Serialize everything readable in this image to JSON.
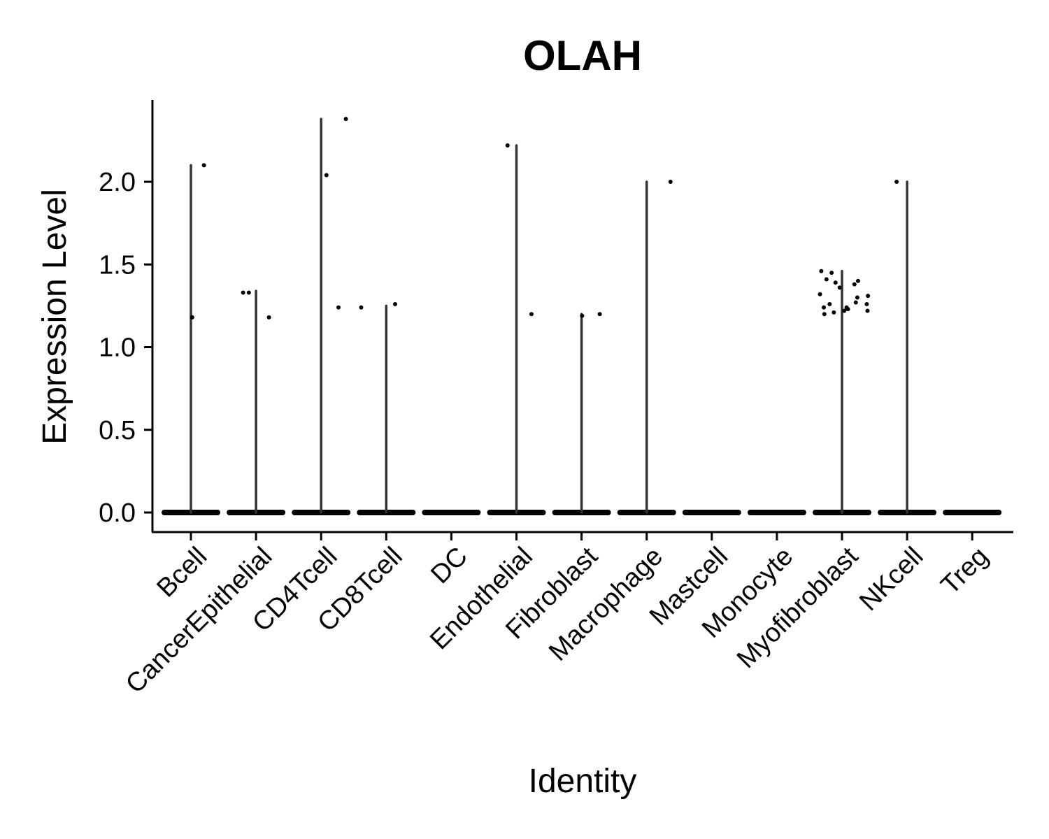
{
  "chart_data": {
    "type": "violin",
    "title": "OLAH",
    "xlabel": "Identity",
    "ylabel": "Expression Level",
    "ylim": [
      -0.12,
      2.5
    ],
    "yticks": [
      "0.0",
      "0.5",
      "1.0",
      "1.5",
      "2.0"
    ],
    "ytick_values": [
      0.0,
      0.5,
      1.0,
      1.5,
      2.0
    ],
    "grid": false,
    "legend": "none",
    "categories": [
      "Bcell",
      "CancerEpithelial",
      "CD4Tcell",
      "CD8Tcell",
      "DC",
      "Endothelial",
      "Fibroblast",
      "Macrophage",
      "Mastcell",
      "Monocyte",
      "Myofibroblast",
      "NKcell",
      "Treg"
    ],
    "violin_max": [
      2.1,
      1.34,
      2.38,
      1.25,
      0.0,
      2.22,
      1.2,
      2.0,
      0.0,
      0.0,
      1.46,
      2.0,
      0.0
    ],
    "points": [
      {
        "category": "Bcell",
        "values": [
          2.1,
          1.18
        ]
      },
      {
        "category": "CancerEpithelial",
        "values": [
          1.33,
          1.33,
          1.18
        ]
      },
      {
        "category": "CD4Tcell",
        "values": [
          2.38,
          2.04,
          1.24
        ]
      },
      {
        "category": "CD8Tcell",
        "values": [
          1.26,
          1.24
        ]
      },
      {
        "category": "DC",
        "values": []
      },
      {
        "category": "Endothelial",
        "values": [
          2.22,
          1.2
        ]
      },
      {
        "category": "Fibroblast",
        "values": [
          1.19,
          1.2
        ]
      },
      {
        "category": "Macrophage",
        "values": [
          2.0
        ]
      },
      {
        "category": "Mastcell",
        "values": []
      },
      {
        "category": "Monocyte",
        "values": []
      },
      {
        "category": "Myofibroblast",
        "values": [
          1.46,
          1.4,
          1.39,
          1.36,
          1.32,
          1.31,
          1.27,
          1.26,
          1.24,
          1.22,
          1.21,
          1.45,
          1.41,
          1.38,
          1.3,
          1.26,
          1.24,
          1.23,
          1.22,
          1.2
        ]
      },
      {
        "category": "NKcell",
        "values": [
          2.0
        ]
      },
      {
        "category": "Treg",
        "values": []
      }
    ],
    "colors": {
      "violin": "#333333",
      "points": "#000000",
      "axis": "#000000"
    }
  }
}
